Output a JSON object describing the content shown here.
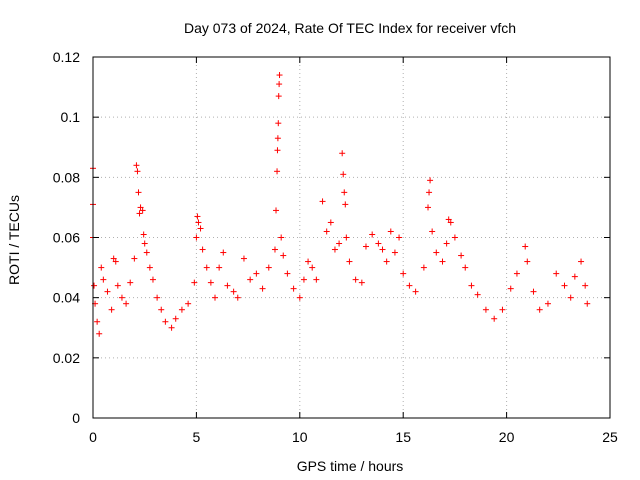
{
  "chart_data": {
    "type": "scatter",
    "title": "Day 073 of 2024, Rate Of TEC Index for receiver vfch",
    "xlabel": "GPS time / hours",
    "ylabel": "ROTI / TECUs",
    "xlim": [
      0,
      25
    ],
    "ylim": [
      0,
      0.12
    ],
    "xticks": [
      0,
      5,
      10,
      15,
      20,
      25
    ],
    "xtick_labels": [
      "0",
      "5",
      "10",
      "15",
      "20",
      "25"
    ],
    "yticks": [
      0,
      0.02,
      0.04,
      0.06,
      0.08,
      0.1,
      0.12
    ],
    "ytick_labels": [
      "0",
      "0.02",
      "0.04",
      "0.06",
      "0.08",
      "0.1",
      "0.12"
    ],
    "grid": true,
    "marker": "plus",
    "color": "#ff0000",
    "series": [
      {
        "name": "ROTI",
        "points": [
          [
            0.0,
            0.083
          ],
          [
            0.0,
            0.071
          ],
          [
            0.0,
            0.06
          ],
          [
            0.05,
            0.044
          ],
          [
            0.1,
            0.038
          ],
          [
            0.2,
            0.032
          ],
          [
            0.3,
            0.028
          ],
          [
            0.4,
            0.05
          ],
          [
            0.5,
            0.046
          ],
          [
            0.7,
            0.042
          ],
          [
            0.9,
            0.036
          ],
          [
            1.0,
            0.053
          ],
          [
            1.1,
            0.052
          ],
          [
            1.2,
            0.044
          ],
          [
            1.4,
            0.04
          ],
          [
            1.6,
            0.038
          ],
          [
            1.8,
            0.045
          ],
          [
            2.0,
            0.053
          ],
          [
            2.1,
            0.084
          ],
          [
            2.15,
            0.082
          ],
          [
            2.2,
            0.075
          ],
          [
            2.25,
            0.068
          ],
          [
            2.3,
            0.07
          ],
          [
            2.4,
            0.069
          ],
          [
            2.45,
            0.061
          ],
          [
            2.5,
            0.058
          ],
          [
            2.6,
            0.055
          ],
          [
            2.75,
            0.05
          ],
          [
            2.9,
            0.046
          ],
          [
            3.1,
            0.04
          ],
          [
            3.3,
            0.036
          ],
          [
            3.5,
            0.032
          ],
          [
            3.8,
            0.03
          ],
          [
            4.0,
            0.033
          ],
          [
            4.3,
            0.036
          ],
          [
            4.6,
            0.038
          ],
          [
            4.9,
            0.045
          ],
          [
            5.0,
            0.06
          ],
          [
            5.05,
            0.067
          ],
          [
            5.1,
            0.065
          ],
          [
            5.2,
            0.063
          ],
          [
            5.3,
            0.056
          ],
          [
            5.5,
            0.05
          ],
          [
            5.7,
            0.045
          ],
          [
            5.9,
            0.04
          ],
          [
            6.1,
            0.05
          ],
          [
            6.3,
            0.055
          ],
          [
            6.5,
            0.044
          ],
          [
            6.8,
            0.042
          ],
          [
            7.0,
            0.04
          ],
          [
            7.3,
            0.053
          ],
          [
            7.6,
            0.046
          ],
          [
            7.9,
            0.048
          ],
          [
            8.2,
            0.043
          ],
          [
            8.5,
            0.05
          ],
          [
            8.8,
            0.056
          ],
          [
            8.85,
            0.069
          ],
          [
            8.9,
            0.082
          ],
          [
            8.92,
            0.089
          ],
          [
            8.94,
            0.093
          ],
          [
            8.96,
            0.098
          ],
          [
            8.98,
            0.107
          ],
          [
            9.0,
            0.111
          ],
          [
            9.02,
            0.114
          ],
          [
            9.1,
            0.06
          ],
          [
            9.2,
            0.054
          ],
          [
            9.4,
            0.048
          ],
          [
            9.7,
            0.043
          ],
          [
            10.0,
            0.04
          ],
          [
            10.2,
            0.046
          ],
          [
            10.4,
            0.052
          ],
          [
            10.6,
            0.05
          ],
          [
            10.8,
            0.046
          ],
          [
            11.1,
            0.072
          ],
          [
            11.3,
            0.062
          ],
          [
            11.5,
            0.065
          ],
          [
            11.7,
            0.056
          ],
          [
            11.9,
            0.058
          ],
          [
            12.05,
            0.088
          ],
          [
            12.1,
            0.081
          ],
          [
            12.15,
            0.075
          ],
          [
            12.2,
            0.071
          ],
          [
            12.25,
            0.06
          ],
          [
            12.4,
            0.052
          ],
          [
            12.7,
            0.046
          ],
          [
            13.0,
            0.045
          ],
          [
            13.2,
            0.057
          ],
          [
            13.5,
            0.061
          ],
          [
            13.8,
            0.058
          ],
          [
            14.0,
            0.056
          ],
          [
            14.2,
            0.052
          ],
          [
            14.4,
            0.062
          ],
          [
            14.6,
            0.055
          ],
          [
            14.8,
            0.06
          ],
          [
            15.0,
            0.048
          ],
          [
            15.3,
            0.044
          ],
          [
            15.6,
            0.042
          ],
          [
            16.0,
            0.05
          ],
          [
            16.2,
            0.07
          ],
          [
            16.25,
            0.075
          ],
          [
            16.3,
            0.079
          ],
          [
            16.4,
            0.062
          ],
          [
            16.6,
            0.055
          ],
          [
            16.9,
            0.052
          ],
          [
            17.1,
            0.058
          ],
          [
            17.2,
            0.066
          ],
          [
            17.3,
            0.065
          ],
          [
            17.5,
            0.06
          ],
          [
            17.8,
            0.054
          ],
          [
            18.0,
            0.05
          ],
          [
            18.3,
            0.044
          ],
          [
            18.6,
            0.041
          ],
          [
            19.0,
            0.036
          ],
          [
            19.4,
            0.033
          ],
          [
            19.8,
            0.036
          ],
          [
            20.2,
            0.043
          ],
          [
            20.5,
            0.048
          ],
          [
            20.9,
            0.057
          ],
          [
            21.0,
            0.052
          ],
          [
            21.3,
            0.042
          ],
          [
            21.6,
            0.036
          ],
          [
            22.0,
            0.038
          ],
          [
            22.4,
            0.048
          ],
          [
            22.8,
            0.044
          ],
          [
            23.1,
            0.04
          ],
          [
            23.3,
            0.047
          ],
          [
            23.6,
            0.052
          ],
          [
            23.8,
            0.044
          ],
          [
            23.9,
            0.038
          ]
        ]
      }
    ]
  }
}
